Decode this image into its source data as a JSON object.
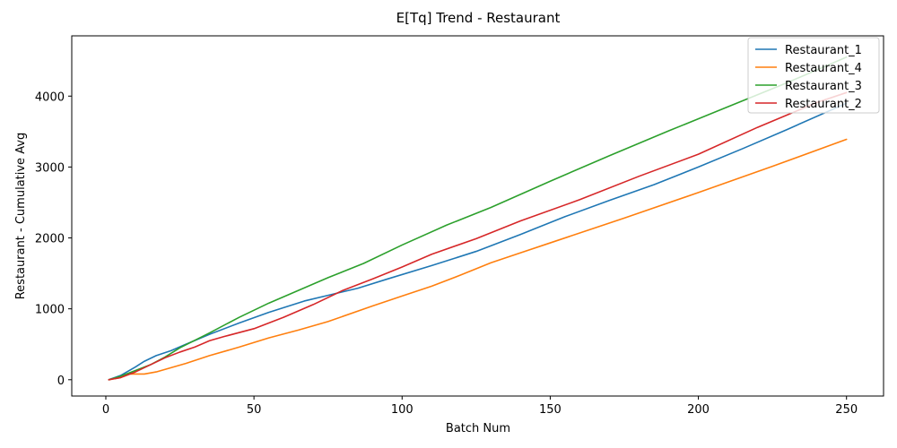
{
  "chart_data": {
    "type": "line",
    "title": "E[Tq] Trend - Restaurant",
    "xlabel": "Batch Num",
    "ylabel": "Restaurant - Cumulative Avg",
    "xlim": [
      -11.5,
      262.5
    ],
    "ylim": [
      -230,
      4850
    ],
    "xticks": [
      0,
      50,
      100,
      150,
      200,
      250
    ],
    "yticks": [
      0,
      1000,
      2000,
      3000,
      4000
    ],
    "grid": false,
    "legend_position": "top-right",
    "series": [
      {
        "name": "Restaurant_1",
        "color": "#1f77b4",
        "points": [
          [
            1,
            0
          ],
          [
            5,
            60
          ],
          [
            10,
            180
          ],
          [
            13,
            260
          ],
          [
            17,
            340
          ],
          [
            22,
            410
          ],
          [
            27,
            500
          ],
          [
            35,
            640
          ],
          [
            45,
            800
          ],
          [
            55,
            950
          ],
          [
            67,
            1110
          ],
          [
            75,
            1190
          ],
          [
            85,
            1290
          ],
          [
            95,
            1420
          ],
          [
            110,
            1610
          ],
          [
            125,
            1810
          ],
          [
            140,
            2050
          ],
          [
            155,
            2300
          ],
          [
            170,
            2530
          ],
          [
            185,
            2750
          ],
          [
            200,
            3000
          ],
          [
            215,
            3260
          ],
          [
            230,
            3530
          ],
          [
            250,
            3900
          ]
        ]
      },
      {
        "name": "Restaurant_4",
        "color": "#ff7f0e",
        "points": [
          [
            1,
            0
          ],
          [
            5,
            30
          ],
          [
            8,
            80
          ],
          [
            13,
            80
          ],
          [
            17,
            110
          ],
          [
            22,
            170
          ],
          [
            27,
            230
          ],
          [
            35,
            340
          ],
          [
            45,
            460
          ],
          [
            55,
            590
          ],
          [
            65,
            700
          ],
          [
            75,
            820
          ],
          [
            90,
            1040
          ],
          [
            100,
            1180
          ],
          [
            110,
            1320
          ],
          [
            120,
            1480
          ],
          [
            130,
            1650
          ],
          [
            140,
            1790
          ],
          [
            150,
            1930
          ],
          [
            175,
            2280
          ],
          [
            200,
            2640
          ],
          [
            225,
            3010
          ],
          [
            250,
            3390
          ]
        ]
      },
      {
        "name": "Restaurant_3",
        "color": "#2ca02c",
        "points": [
          [
            1,
            0
          ],
          [
            5,
            50
          ],
          [
            10,
            130
          ],
          [
            15,
            210
          ],
          [
            20,
            320
          ],
          [
            25,
            450
          ],
          [
            35,
            660
          ],
          [
            45,
            880
          ],
          [
            55,
            1080
          ],
          [
            65,
            1260
          ],
          [
            75,
            1440
          ],
          [
            87,
            1640
          ],
          [
            100,
            1900
          ],
          [
            115,
            2180
          ],
          [
            130,
            2430
          ],
          [
            150,
            2800
          ],
          [
            170,
            3160
          ],
          [
            190,
            3510
          ],
          [
            210,
            3850
          ],
          [
            230,
            4190
          ],
          [
            250,
            4550
          ]
        ]
      },
      {
        "name": "Restaurant_2",
        "color": "#d62728",
        "points": [
          [
            1,
            0
          ],
          [
            5,
            30
          ],
          [
            10,
            110
          ],
          [
            15,
            210
          ],
          [
            20,
            310
          ],
          [
            25,
            390
          ],
          [
            30,
            460
          ],
          [
            35,
            550
          ],
          [
            40,
            610
          ],
          [
            50,
            720
          ],
          [
            60,
            880
          ],
          [
            70,
            1060
          ],
          [
            80,
            1260
          ],
          [
            90,
            1420
          ],
          [
            100,
            1590
          ],
          [
            110,
            1770
          ],
          [
            125,
            1990
          ],
          [
            140,
            2240
          ],
          [
            160,
            2540
          ],
          [
            180,
            2870
          ],
          [
            200,
            3180
          ],
          [
            220,
            3560
          ],
          [
            240,
            3910
          ],
          [
            250,
            4050
          ]
        ]
      }
    ]
  }
}
